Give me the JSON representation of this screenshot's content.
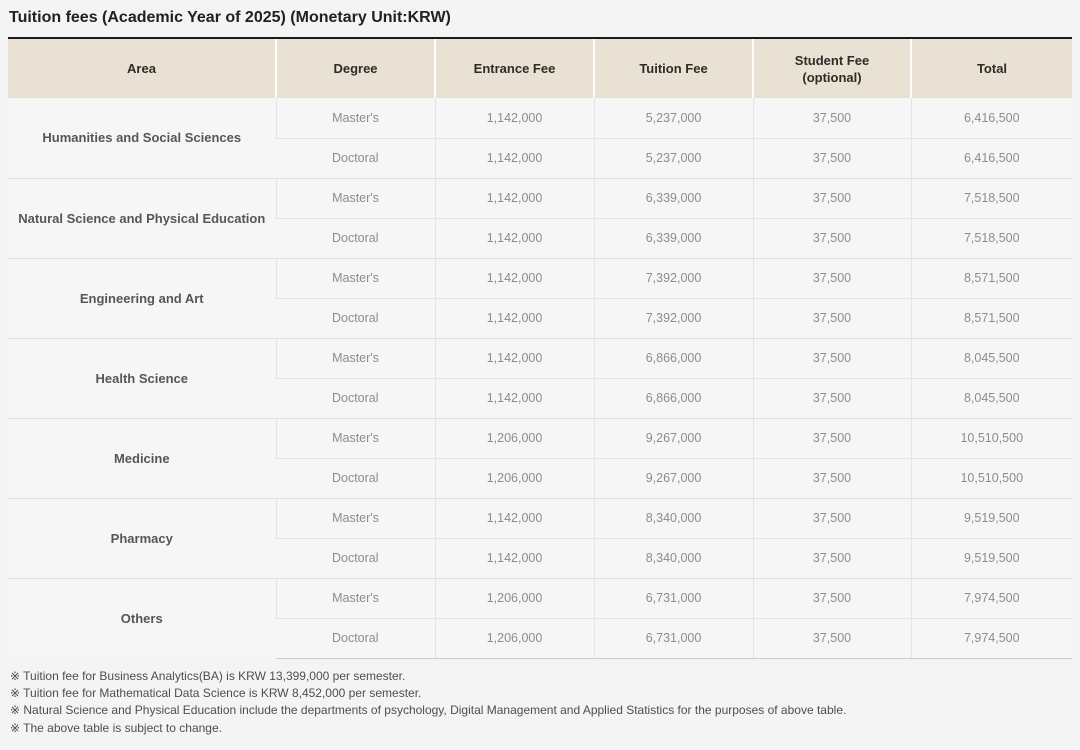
{
  "title": "Tuition fees (Academic Year of 2025) (Monetary Unit:KRW)",
  "colors": {
    "page_bg": "#f4f4f5",
    "header_bg": "#e8e1d4",
    "table_top_border": "#1c1c1c",
    "row_bg": "#f6f6f6",
    "title_color": "#212121",
    "header_text": "#2f2b26",
    "cell_text": "#8d8d8d",
    "area_text": "#565656",
    "footnote_text": "#4e4e4e"
  },
  "table": {
    "columns": [
      {
        "label": "Area"
      },
      {
        "label": "Degree"
      },
      {
        "label": "Entrance Fee"
      },
      {
        "label": "Tuition Fee"
      },
      {
        "label": "Student Fee",
        "sublabel": "(optional)"
      },
      {
        "label": "Total"
      }
    ],
    "groups": [
      {
        "area": "Humanities and Social Sciences",
        "rows": [
          {
            "degree": "Master's",
            "entrance_fee": "1,142,000",
            "tuition_fee": "5,237,000",
            "student_fee": "37,500",
            "total": "6,416,500"
          },
          {
            "degree": "Doctoral",
            "entrance_fee": "1,142,000",
            "tuition_fee": "5,237,000",
            "student_fee": "37,500",
            "total": "6,416,500"
          }
        ]
      },
      {
        "area": "Natural Science and Physical Education",
        "rows": [
          {
            "degree": "Master's",
            "entrance_fee": "1,142,000",
            "tuition_fee": "6,339,000",
            "student_fee": "37,500",
            "total": "7,518,500"
          },
          {
            "degree": "Doctoral",
            "entrance_fee": "1,142,000",
            "tuition_fee": "6,339,000",
            "student_fee": "37,500",
            "total": "7,518,500"
          }
        ]
      },
      {
        "area": "Engineering and Art",
        "rows": [
          {
            "degree": "Master's",
            "entrance_fee": "1,142,000",
            "tuition_fee": "7,392,000",
            "student_fee": "37,500",
            "total": "8,571,500"
          },
          {
            "degree": "Doctoral",
            "entrance_fee": "1,142,000",
            "tuition_fee": "7,392,000",
            "student_fee": "37,500",
            "total": "8,571,500"
          }
        ]
      },
      {
        "area": "Health Science",
        "rows": [
          {
            "degree": "Master's",
            "entrance_fee": "1,142,000",
            "tuition_fee": "6,866,000",
            "student_fee": "37,500",
            "total": "8,045,500"
          },
          {
            "degree": "Doctoral",
            "entrance_fee": "1,142,000",
            "tuition_fee": "6,866,000",
            "student_fee": "37,500",
            "total": "8,045,500"
          }
        ]
      },
      {
        "area": "Medicine",
        "rows": [
          {
            "degree": "Master's",
            "entrance_fee": "1,206,000",
            "tuition_fee": "9,267,000",
            "student_fee": "37,500",
            "total": "10,510,500"
          },
          {
            "degree": "Doctoral",
            "entrance_fee": "1,206,000",
            "tuition_fee": "9,267,000",
            "student_fee": "37,500",
            "total": "10,510,500"
          }
        ]
      },
      {
        "area": "Pharmacy",
        "rows": [
          {
            "degree": "Master's",
            "entrance_fee": "1,142,000",
            "tuition_fee": "8,340,000",
            "student_fee": "37,500",
            "total": "9,519,500"
          },
          {
            "degree": "Doctoral",
            "entrance_fee": "1,142,000",
            "tuition_fee": "8,340,000",
            "student_fee": "37,500",
            "total": "9,519,500"
          }
        ]
      },
      {
        "area": "Others",
        "rows": [
          {
            "degree": "Master's",
            "entrance_fee": "1,206,000",
            "tuition_fee": "6,731,000",
            "student_fee": "37,500",
            "total": "7,974,500"
          },
          {
            "degree": "Doctoral",
            "entrance_fee": "1,206,000",
            "tuition_fee": "6,731,000",
            "student_fee": "37,500",
            "total": "7,974,500"
          }
        ]
      }
    ]
  },
  "footnotes": [
    "※ Tuition fee for Business Analytics(BA) is KRW 13,399,000 per semester.",
    "※ Tuition fee for Mathematical Data Science is KRW 8,452,000 per semester.",
    "※ Natural Science and Physical Education include the departments of psychology, Digital Management and Applied Statistics for the purposes of above table.",
    "※ The above table is subject to change."
  ]
}
